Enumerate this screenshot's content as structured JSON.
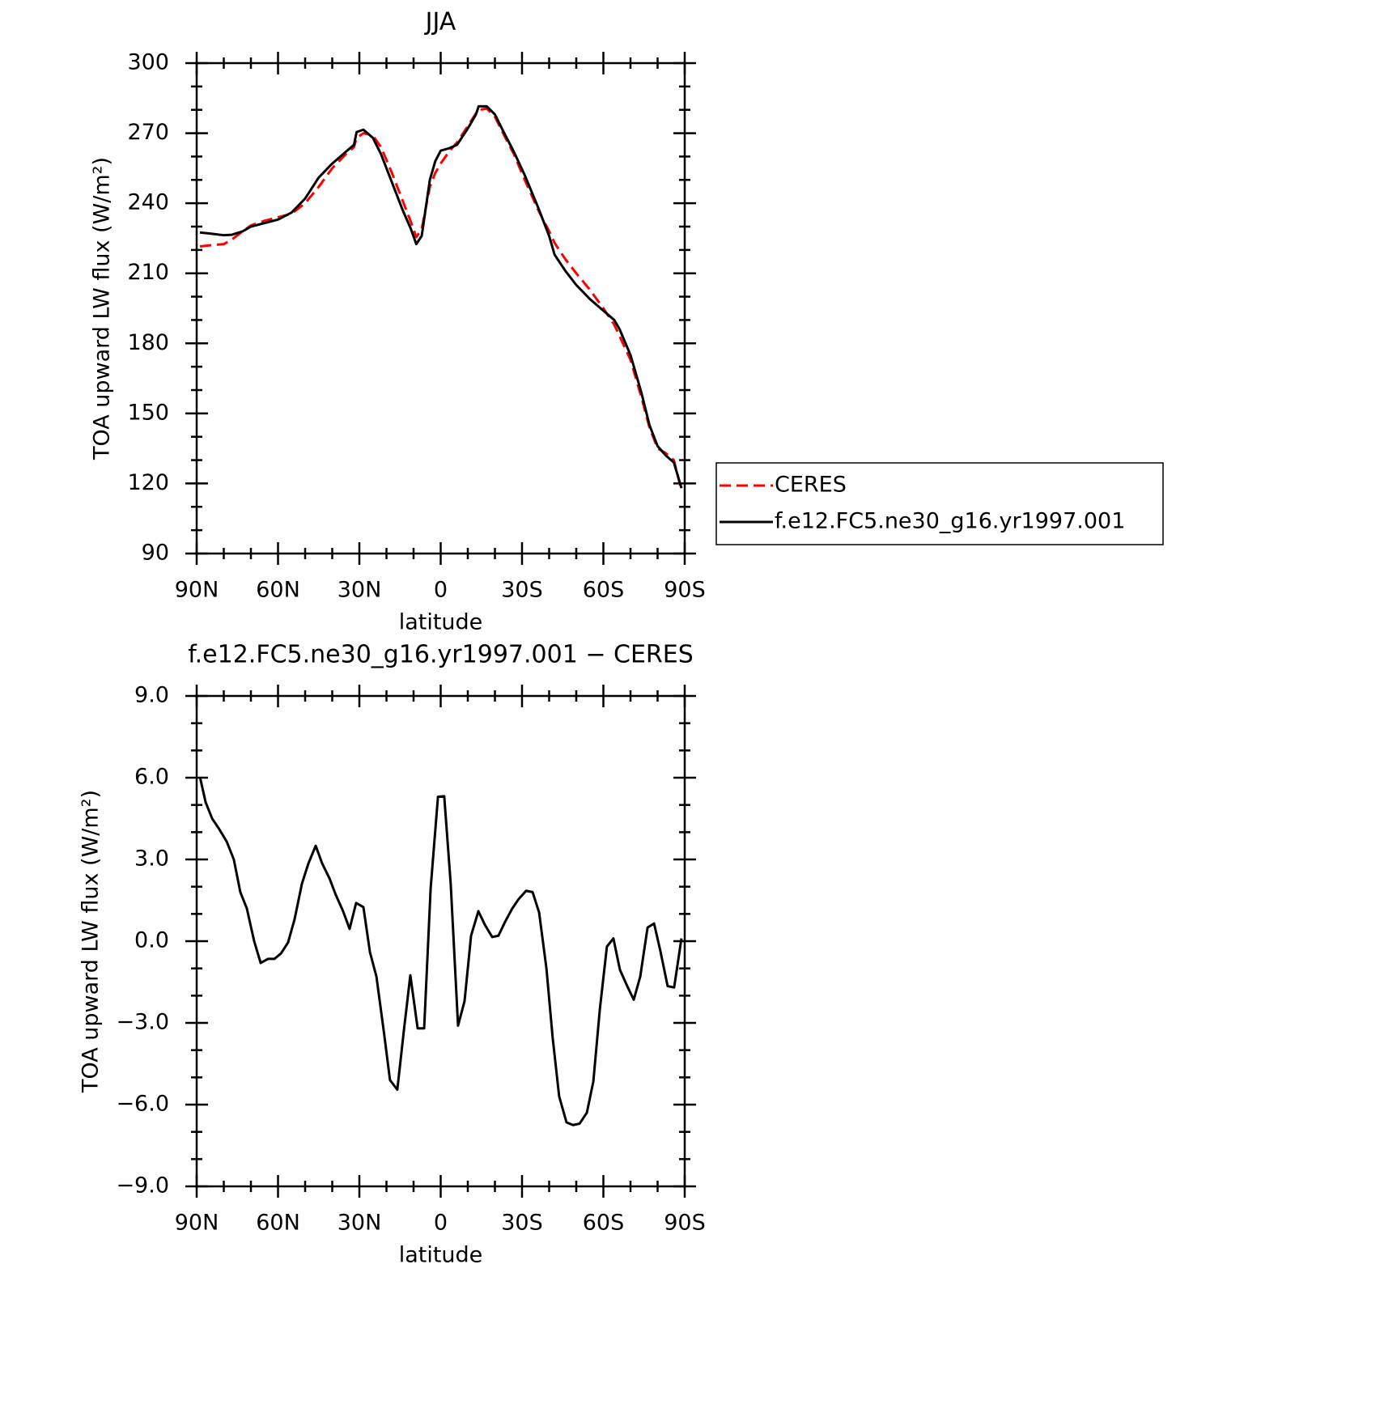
{
  "chart_data": [
    {
      "type": "line",
      "title": "JJA",
      "x_label": "latitude",
      "y_label": "TOA upward LW flux (W/m²)",
      "x": [
        88.8,
        85,
        80,
        77,
        73,
        70,
        65,
        60,
        55,
        50,
        45,
        40,
        35,
        32,
        31,
        28.5,
        25,
        22,
        18,
        14,
        11,
        9,
        7,
        4,
        2,
        0,
        -3,
        -6,
        -10,
        -13,
        -14,
        -17,
        -20,
        -23,
        -27,
        -31,
        -36,
        -40,
        -42,
        -46,
        -50,
        -55,
        -60,
        -64,
        -66,
        -70,
        -74,
        -77,
        -80,
        -83,
        -86,
        -88.8
      ],
      "series": [
        {
          "name": "CERES",
          "color": "#ff0000",
          "line_style": "dashed",
          "values": [
            221.5,
            222,
            222.5,
            224.5,
            228,
            230.5,
            232.5,
            234,
            235.5,
            240,
            247,
            255,
            261,
            264,
            268,
            270,
            269,
            264,
            253,
            241,
            232,
            225.5,
            229,
            247,
            253,
            257,
            262,
            266,
            273,
            278.5,
            280,
            280.5,
            277,
            270,
            261,
            250,
            237,
            228,
            223,
            216,
            210,
            203,
            195,
            188,
            183,
            173,
            157,
            144,
            135,
            133,
            130,
            117
          ]
        },
        {
          "name": "f.e12.FC5.ne30_g16.yr1997.001",
          "color": "#000000",
          "line_style": "solid",
          "values": [
            227.5,
            227,
            226.3,
            226.5,
            228,
            230,
            231.5,
            233,
            236,
            242,
            251,
            257,
            262,
            265,
            270.5,
            271.5,
            268,
            261,
            249,
            237,
            229,
            222.5,
            226,
            250,
            258,
            262.5,
            263.5,
            265,
            272,
            278,
            281.5,
            281.5,
            278,
            271,
            262,
            252,
            238,
            226,
            218,
            211,
            205,
            199,
            194,
            190,
            186,
            175,
            159,
            145,
            136,
            132,
            129,
            118
          ]
        }
      ],
      "xlim": [
        90,
        -90
      ],
      "xticks": [
        {
          "value": 90,
          "label": "90N"
        },
        {
          "value": 60,
          "label": "60N"
        },
        {
          "value": 30,
          "label": "30N"
        },
        0,
        {
          "value": -30,
          "label": "30S"
        },
        {
          "value": -60,
          "label": "60S"
        },
        {
          "value": -90,
          "label": "90S"
        }
      ],
      "ylim": [
        90,
        300
      ],
      "yticks": [
        90,
        120,
        150,
        180,
        210,
        240,
        270,
        300
      ],
      "legend": "right"
    },
    {
      "type": "line",
      "title": "f.e12.FC5.ne30_g16.yr1997.001 − CERES",
      "x_label": "latitude",
      "y_label": "TOA upward LW flux (W/m²)",
      "x": [
        88.8,
        86.7,
        84.3,
        81.6,
        78.9,
        76.3,
        73.9,
        71.5,
        68.8,
        66.4,
        63.7,
        61.3,
        58.9,
        56.3,
        53.9,
        51.2,
        48.8,
        46.1,
        43.7,
        41,
        38.7,
        36,
        33.6,
        31.2,
        28.5,
        26.1,
        23.7,
        21,
        18.7,
        16,
        13.6,
        11.2,
        8.5,
        6.1,
        3.7,
        1,
        -1.3,
        -3.7,
        -6.4,
        -8.8,
        -11.2,
        -13.9,
        -16.3,
        -19,
        -21.3,
        -23.7,
        -26.4,
        -28.8,
        -31.5,
        -33.9,
        -36.3,
        -39,
        -41.3,
        -43.7,
        -46.4,
        -48.8,
        -51.2,
        -53.9,
        -56.3,
        -58.7,
        -61.3,
        -63.7,
        -66.1,
        -68.8,
        -71.2,
        -73.6,
        -76.3,
        -78.7,
        -81,
        -83.7,
        -86.1,
        -88.8
      ],
      "values": [
        6.03,
        5.1,
        4.5,
        4.1,
        3.65,
        3.0,
        1.8,
        1.2,
        0,
        -0.8,
        -0.65,
        -0.65,
        -0.45,
        -0.05,
        0.8,
        2.1,
        2.85,
        3.5,
        2.85,
        2.3,
        1.7,
        1.1,
        0.45,
        1.4,
        1.25,
        -0.4,
        -1.3,
        -3.3,
        -5.1,
        -5.45,
        -3.3,
        -1.25,
        -3.2,
        -3.2,
        1.95,
        5.3,
        5.32,
        2.1,
        -3.1,
        -2.2,
        0.2,
        1.1,
        0.6,
        0.15,
        0.2,
        0.7,
        1.2,
        1.55,
        1.85,
        1.8,
        1.05,
        -1.0,
        -3.55,
        -5.7,
        -6.65,
        -6.75,
        -6.7,
        -6.3,
        -5.15,
        -2.5,
        -0.2,
        0.1,
        -1.05,
        -1.65,
        -2.15,
        -1.3,
        0.5,
        0.65,
        -0.35,
        -1.65,
        -1.7,
        0.1
      ],
      "color": "#000000",
      "xlim": [
        90,
        -90
      ],
      "xticks": [
        {
          "value": 90,
          "label": "90N"
        },
        {
          "value": 60,
          "label": "60N"
        },
        {
          "value": 30,
          "label": "30N"
        },
        0,
        {
          "value": -30,
          "label": "30S"
        },
        {
          "value": -60,
          "label": "60S"
        },
        {
          "value": -90,
          "label": "90S"
        }
      ],
      "ylim": [
        -9,
        9
      ],
      "yticks": [
        {
          "value": -9,
          "label": "−9.0"
        },
        {
          "value": -6,
          "label": "−6.0"
        },
        {
          "value": -3,
          "label": "−3.0"
        },
        {
          "value": 0,
          "label": "0.0"
        },
        {
          "value": 3,
          "label": "3.0"
        },
        {
          "value": 6,
          "label": "6.0"
        },
        {
          "value": 9,
          "label": "9.0"
        }
      ]
    }
  ]
}
